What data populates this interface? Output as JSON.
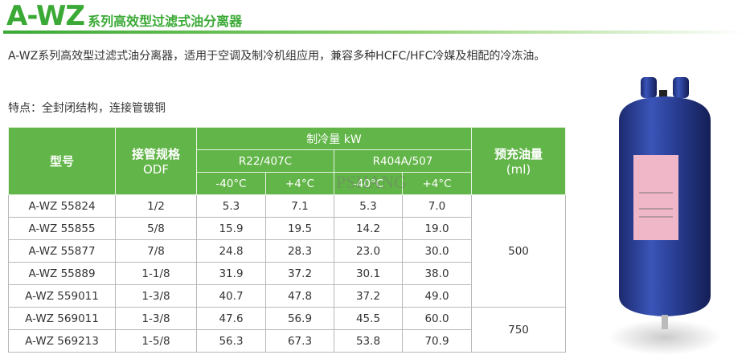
{
  "header": {
    "code": "A-WZ",
    "title": "系列高效型过滤式油分离器"
  },
  "description": "A-WZ系列高效型过滤式油分离器，适用于空调及制冷机组应用，兼容多种HCFC/HFC冷媒及相配的冷冻油。",
  "features": "特点：全封闭结构，连接管镀铜",
  "watermark": "PSHANG",
  "table": {
    "headers": {
      "model": "型号",
      "odf": "接管规格",
      "odf_unit": "ODF",
      "capacity": "制冷量 kW",
      "oil": "预充油量",
      "oil_unit": "(ml)",
      "groups": [
        {
          "name": "R22/407C",
          "temps": [
            "-40°C",
            "+4°C"
          ]
        },
        {
          "name": "R404A/507",
          "temps": [
            "-40°C",
            "+4°C"
          ]
        }
      ]
    },
    "groups": [
      {
        "oil": "500",
        "rows": [
          [
            "A-WZ 55824",
            "1/2",
            "5.3",
            "7.1",
            "5.3",
            "7.0"
          ],
          [
            "A-WZ 55855",
            "5/8",
            "15.9",
            "19.5",
            "14.2",
            "19.0"
          ],
          [
            "A-WZ 55877",
            "7/8",
            "24.8",
            "28.3",
            "23.0",
            "30.0"
          ],
          [
            "A-WZ 55889",
            "1-1/8",
            "31.9",
            "37.2",
            "30.1",
            "38.0"
          ],
          [
            "A-WZ 559011",
            "1-3/8",
            "40.7",
            "47.8",
            "37.2",
            "49.0"
          ]
        ]
      },
      {
        "oil": "750",
        "rows": [
          [
            "A-WZ 569011",
            "1-3/8",
            "47.6",
            "56.9",
            "45.5",
            "60.0"
          ],
          [
            "A-WZ 569213",
            "1-5/8",
            "56.3",
            "67.3",
            "53.8",
            "70.9"
          ]
        ]
      }
    ]
  }
}
